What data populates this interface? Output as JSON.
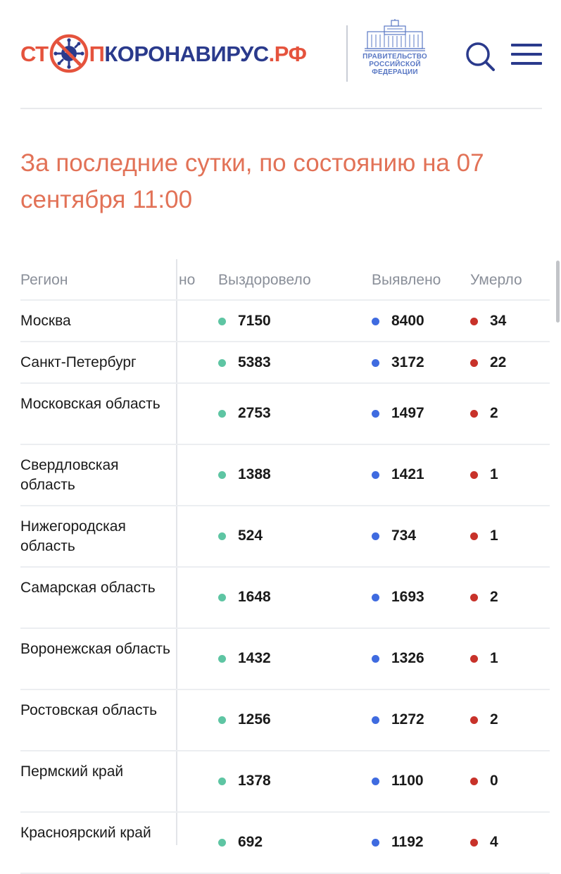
{
  "header": {
    "logo": {
      "part1": "СТ",
      "part2": "П",
      "part3": "КОРОНАВИРУС",
      "part4": ".РФ"
    },
    "gov_text": [
      "ПРАВИТЕЛЬСТВО",
      "РОССИЙСКОЙ",
      "ФЕДЕРАЦИИ"
    ]
  },
  "heading": "За последние сутки, по состоянию на 07 сентября 11:00",
  "table": {
    "columns": {
      "region": "Регион",
      "hidden": "но",
      "recovered": "Выздоровело",
      "detected": "Выявлено",
      "died": "Умерло"
    },
    "rows": [
      {
        "region": "Москва",
        "recovered": "7150",
        "detected": "8400",
        "died": "34"
      },
      {
        "region": "Санкт-Петербург",
        "recovered": "5383",
        "detected": "3172",
        "died": "22"
      },
      {
        "region": "Московская область",
        "recovered": "2753",
        "detected": "1497",
        "died": "2"
      },
      {
        "region": "Свердловская область",
        "recovered": "1388",
        "detected": "1421",
        "died": "1"
      },
      {
        "region": "Нижегородская область",
        "recovered": "524",
        "detected": "734",
        "died": "1"
      },
      {
        "region": "Самарская область",
        "recovered": "1648",
        "detected": "1693",
        "died": "2"
      },
      {
        "region": "Воронежская область",
        "recovered": "1432",
        "detected": "1326",
        "died": "1"
      },
      {
        "region": "Ростовская область",
        "recovered": "1256",
        "detected": "1272",
        "died": "2"
      },
      {
        "region": "Пермский край",
        "recovered": "1378",
        "detected": "1100",
        "died": "0"
      },
      {
        "region": "Красноярский край",
        "recovered": "692",
        "detected": "1192",
        "died": "4"
      }
    ]
  },
  "icons": {
    "search": "search-icon",
    "menu": "menu-icon",
    "virus": "virus-icon",
    "building": "government-building-icon"
  },
  "colors": {
    "brand_red": "#e5533d",
    "brand_blue": "#2a3a8c",
    "heading": "#e27257",
    "recovered": "#5ec5a3",
    "detected": "#3f6be0",
    "died": "#c8322a"
  }
}
